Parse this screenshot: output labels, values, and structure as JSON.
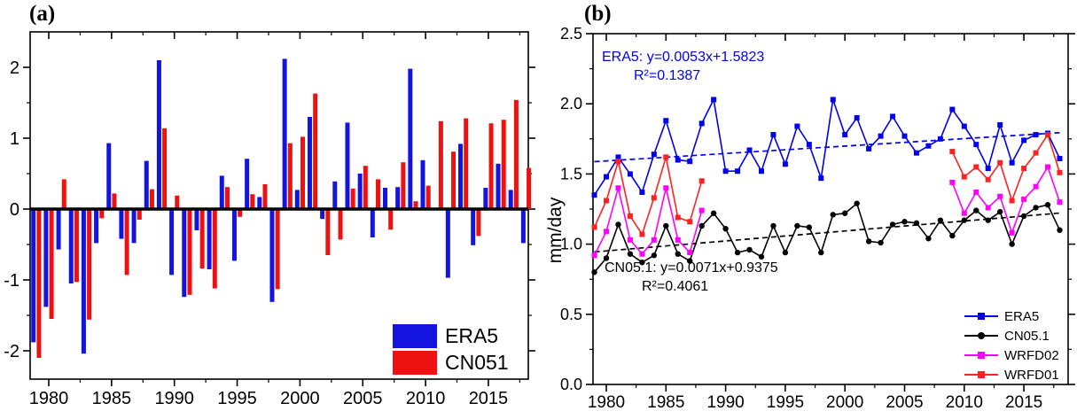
{
  "chart_data": [
    {
      "type": "bar",
      "title": "(a)",
      "years": [
        1979,
        1980,
        1981,
        1982,
        1983,
        1984,
        1985,
        1986,
        1987,
        1988,
        1989,
        1990,
        1991,
        1992,
        1993,
        1994,
        1995,
        1996,
        1997,
        1998,
        1999,
        2000,
        2001,
        2002,
        2003,
        2004,
        2005,
        2006,
        2007,
        2008,
        2009,
        2010,
        2011,
        2012,
        2013,
        2014,
        2015,
        2016,
        2017,
        2018
      ],
      "series": [
        {
          "name": "ERA5",
          "color": "#1414e0",
          "values": [
            -1.88,
            -1.38,
            -0.57,
            -1.05,
            -2.04,
            -0.48,
            0.93,
            -0.42,
            -0.48,
            0.68,
            2.1,
            -0.93,
            -1.24,
            -0.3,
            -0.85,
            0.47,
            -0.73,
            0.71,
            0.17,
            -1.31,
            2.12,
            0.27,
            1.3,
            -0.14,
            0.39,
            1.22,
            0.5,
            -0.4,
            0.3,
            0.31,
            1.98,
            0.69,
            0.0,
            -0.97,
            0.92,
            -0.51,
            0.3,
            0.64,
            0.27,
            -0.48
          ]
        },
        {
          "name": "CN051",
          "color": "#ee1111",
          "values": [
            -2.1,
            -1.55,
            0.42,
            -1.03,
            -1.56,
            -0.13,
            0.22,
            -0.93,
            -0.15,
            0.28,
            1.14,
            0.19,
            -1.21,
            -0.84,
            -1.12,
            0.31,
            -0.11,
            0.21,
            0.35,
            -1.13,
            0.93,
            1.02,
            1.63,
            -0.65,
            -0.43,
            0.29,
            0.61,
            0.42,
            -0.29,
            0.66,
            0.11,
            0.33,
            1.24,
            0.81,
            1.28,
            -0.38,
            1.21,
            1.26,
            1.54,
            0.58
          ]
        }
      ],
      "ylim": [
        -2.4,
        2.5
      ],
      "yticks": [
        "2",
        "1",
        "0",
        "-1",
        "-2"
      ],
      "ytick_values": [
        2,
        1,
        0,
        -1,
        -2
      ],
      "yticks_minor": [
        -1.5,
        -0.5,
        0.5,
        1.5
      ],
      "xticks": [
        1980,
        1985,
        1990,
        1995,
        2000,
        2005,
        2010,
        2015
      ],
      "xticks_minor": [
        1982.5,
        1987.5,
        1992.5,
        1997.5,
        2002.5,
        2007.5,
        2012.5,
        2017.5
      ],
      "zero_line": true,
      "legend_position": "bottom-right"
    },
    {
      "type": "line",
      "title": "(b)",
      "ylabel": "mm/day",
      "years": [
        1979,
        1980,
        1981,
        1982,
        1983,
        1984,
        1985,
        1986,
        1987,
        1988,
        1989,
        1990,
        1991,
        1992,
        1993,
        1994,
        1995,
        1996,
        1997,
        1998,
        1999,
        2000,
        2001,
        2002,
        2003,
        2004,
        2005,
        2006,
        2007,
        2008,
        2009,
        2010,
        2011,
        2012,
        2013,
        2014,
        2015,
        2016,
        2017,
        2018
      ],
      "series": [
        {
          "name": "ERA5",
          "color": "#0000ee",
          "marker": "square",
          "values": [
            1.35,
            1.48,
            1.62,
            1.5,
            1.37,
            1.64,
            1.88,
            1.6,
            1.59,
            1.86,
            2.03,
            1.52,
            1.52,
            1.67,
            1.52,
            1.78,
            1.57,
            1.84,
            1.71,
            1.47,
            2.03,
            1.78,
            1.9,
            1.68,
            1.77,
            1.91,
            1.77,
            1.65,
            1.7,
            1.75,
            1.96,
            1.84,
            1.71,
            1.54,
            1.85,
            1.58,
            1.74,
            1.78,
            1.79,
            1.61
          ]
        },
        {
          "name": "CN05.1",
          "color": "#000000",
          "marker": "circle",
          "values": [
            0.8,
            0.9,
            1.14,
            0.93,
            0.87,
            0.92,
            1.13,
            0.93,
            0.88,
            1.13,
            1.22,
            1.11,
            0.94,
            0.96,
            0.91,
            1.13,
            0.94,
            1.13,
            1.12,
            0.94,
            1.21,
            1.22,
            1.29,
            1.02,
            1.01,
            1.14,
            1.16,
            1.15,
            1.04,
            1.17,
            1.06,
            1.17,
            1.24,
            1.17,
            1.23,
            1.0,
            1.2,
            1.26,
            1.28,
            1.1
          ]
        },
        {
          "name": "WRFD02",
          "color": "#ff00ff",
          "marker": "square",
          "values": [
            0.92,
            1.09,
            1.4,
            1.03,
            0.93,
            1.03,
            1.4,
            1.03,
            0.94,
            1.24,
            null,
            null,
            null,
            null,
            null,
            null,
            null,
            null,
            null,
            null,
            null,
            null,
            null,
            null,
            null,
            null,
            null,
            null,
            null,
            null,
            1.44,
            1.22,
            1.37,
            1.26,
            1.34,
            1.08,
            1.32,
            1.41,
            1.55,
            1.3
          ]
        },
        {
          "name": "WRFD01",
          "color": "#ff2020",
          "marker": "square",
          "values": [
            1.12,
            1.31,
            1.59,
            1.2,
            1.07,
            1.33,
            1.62,
            1.19,
            1.16,
            1.45,
            null,
            null,
            null,
            null,
            null,
            null,
            null,
            null,
            null,
            null,
            null,
            null,
            null,
            null,
            null,
            null,
            null,
            null,
            null,
            null,
            1.66,
            1.48,
            1.55,
            1.46,
            1.58,
            1.31,
            1.54,
            1.65,
            1.78,
            1.51
          ]
        }
      ],
      "trendlines": [
        {
          "series": "ERA5",
          "slope": 0.0053,
          "intercept": 1.5823,
          "color": "#0000ee"
        },
        {
          "series": "CN05.1",
          "slope": 0.0071,
          "intercept": 0.9375,
          "color": "#000000"
        }
      ],
      "annotations": [
        {
          "line1": "ERA5: y=0.0053x+1.5823",
          "line2": "R²=0.1387",
          "color": "#0000ee"
        },
        {
          "line1": "CN05.1: y=0.0071x+0.9375",
          "line2": "R²=0.4061",
          "color": "#000000"
        }
      ],
      "ylim": [
        0,
        2.5
      ],
      "yticks": [
        "0.0",
        "0.5",
        "1.0",
        "1.5",
        "2.0",
        "2.5"
      ],
      "ytick_values": [
        0,
        0.5,
        1.0,
        1.5,
        2.0,
        2.5
      ],
      "yticks_minor": [
        0.25,
        0.75,
        1.25,
        1.75,
        2.25
      ],
      "xticks": [
        1980,
        1985,
        1990,
        1995,
        2000,
        2005,
        2010,
        2015
      ],
      "xticks_minor": [
        1982.5,
        1987.5,
        1992.5,
        1997.5,
        2002.5,
        2007.5,
        2012.5,
        2017.5
      ],
      "legend_position": "bottom-right"
    }
  ]
}
